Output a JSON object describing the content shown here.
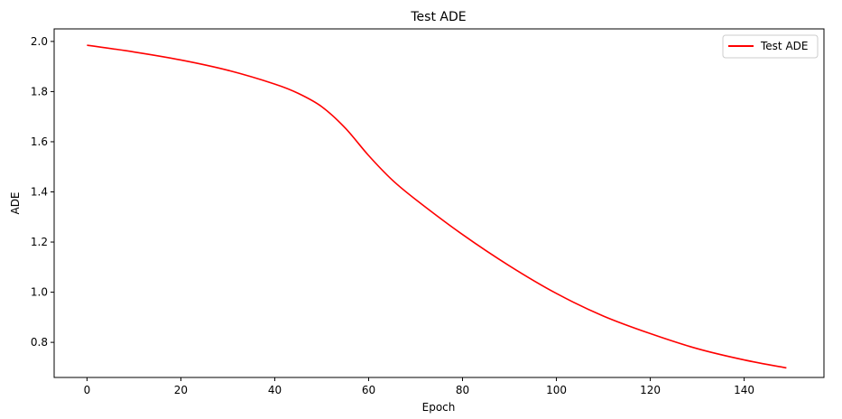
{
  "chart_data": {
    "type": "line",
    "title": "Test ADE",
    "xlabel": "Epoch",
    "ylabel": "ADE",
    "xlim": [
      -7,
      157
    ],
    "ylim": [
      0.66,
      2.05
    ],
    "xticks": [
      0,
      20,
      40,
      60,
      80,
      100,
      120,
      140
    ],
    "yticks": [
      0.8,
      1.0,
      1.2,
      1.4,
      1.6,
      1.8,
      2.0
    ],
    "grid": false,
    "legend_position": "top-right",
    "series": [
      {
        "name": "Test ADE",
        "color": "#ff0000",
        "x": [
          0,
          10,
          20,
          30,
          40,
          45,
          50,
          55,
          60,
          65,
          70,
          80,
          90,
          100,
          110,
          120,
          130,
          140,
          149
        ],
        "y": [
          1.985,
          1.958,
          1.926,
          1.885,
          1.83,
          1.793,
          1.74,
          1.655,
          1.545,
          1.448,
          1.37,
          1.23,
          1.105,
          0.995,
          0.905,
          0.835,
          0.775,
          0.73,
          0.698
        ]
      }
    ]
  }
}
